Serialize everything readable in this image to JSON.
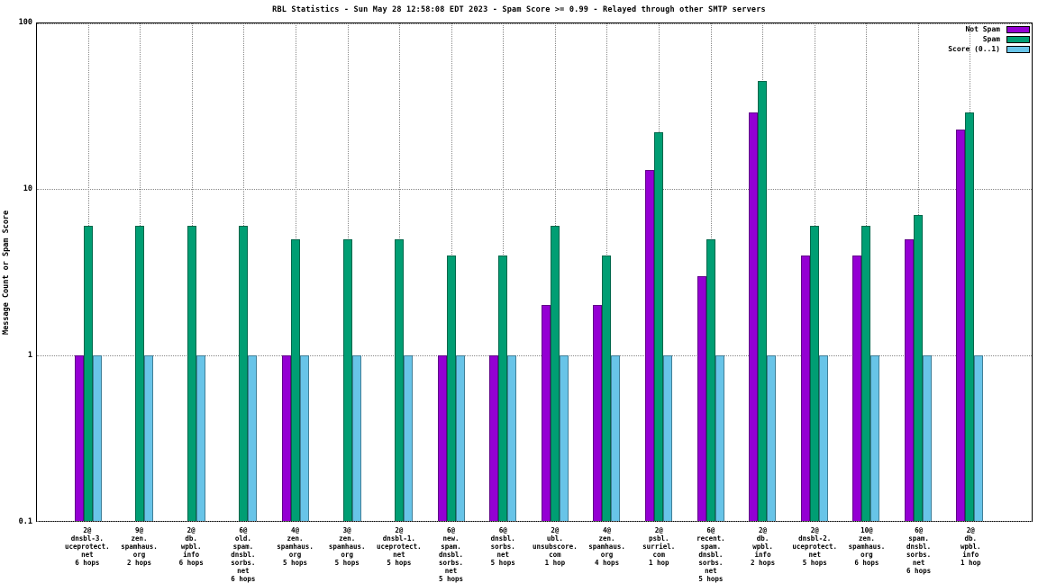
{
  "title": "RBL Statistics - Sun May 28 12:58:08 EDT 2023 - Spam Score >= 0.99 - Relayed through other SMTP servers",
  "y_axis_label": "Message Count or Spam Score",
  "chart_data": {
    "type": "bar",
    "y_scale": "log",
    "grid": true,
    "legend_position": "top-right",
    "ylim": [
      0.1,
      100
    ],
    "yticks": [
      100,
      10,
      1,
      0.1
    ],
    "categories": [
      "2@\ndnsbl-3.\nuceprotect.\nnet\n6 hops",
      "9@\nzen.\nspamhaus.\norg\n2 hops",
      "2@\ndb.\nwpbl.\ninfo\n6 hops",
      "6@\nold.\nspam.\ndnsbl.\nsorbs.\nnet\n6 hops",
      "4@\nzen.\nspamhaus.\norg\n5 hops",
      "3@\nzen.\nspamhaus.\norg\n5 hops",
      "2@\ndnsbl-1.\nuceprotect.\nnet\n5 hops",
      "6@\nnew.\nspam.\ndnsbl.\nsorbs.\nnet\n5 hops",
      "6@\ndnsbl.\nsorbs.\nnet\n5 hops",
      "2@\nubl.\nunsubscore.\ncom\n1 hop",
      "4@\nzen.\nspamhaus.\norg\n4 hops",
      "2@\npsbl.\nsurriel.\ncom\n1 hop",
      "6@\nrecent.\nspam.\ndnsbl.\nsorbs.\nnet\n5 hops",
      "2@\ndb.\nwpbl.\ninfo\n2 hops",
      "2@\ndnsbl-2.\nuceprotect.\nnet\n5 hops",
      "10@\nzen.\nspamhaus.\norg\n6 hops",
      "6@\nspam.\ndnsbl.\nsorbs.\nnet\n6 hops",
      "2@\ndb.\nwpbl.\ninfo\n1 hop"
    ],
    "series": [
      {
        "name": "Not Spam",
        "color": "#9400d3",
        "values": [
          1,
          0,
          0,
          0,
          1,
          0,
          0,
          1,
          1,
          2,
          2,
          13,
          3,
          29,
          4,
          4,
          5,
          23
        ]
      },
      {
        "name": "Spam",
        "color": "#009e73",
        "values": [
          6,
          6,
          6,
          6,
          5,
          5,
          5,
          4,
          4,
          6,
          4,
          22,
          5,
          45,
          6,
          6,
          7,
          29
        ]
      },
      {
        "name": "Score (0..1)",
        "color": "#68c4e8",
        "values": [
          1,
          1,
          1,
          1,
          1,
          1,
          1,
          1,
          1,
          1,
          1,
          1,
          1,
          1,
          1,
          1,
          1,
          1
        ]
      }
    ]
  }
}
